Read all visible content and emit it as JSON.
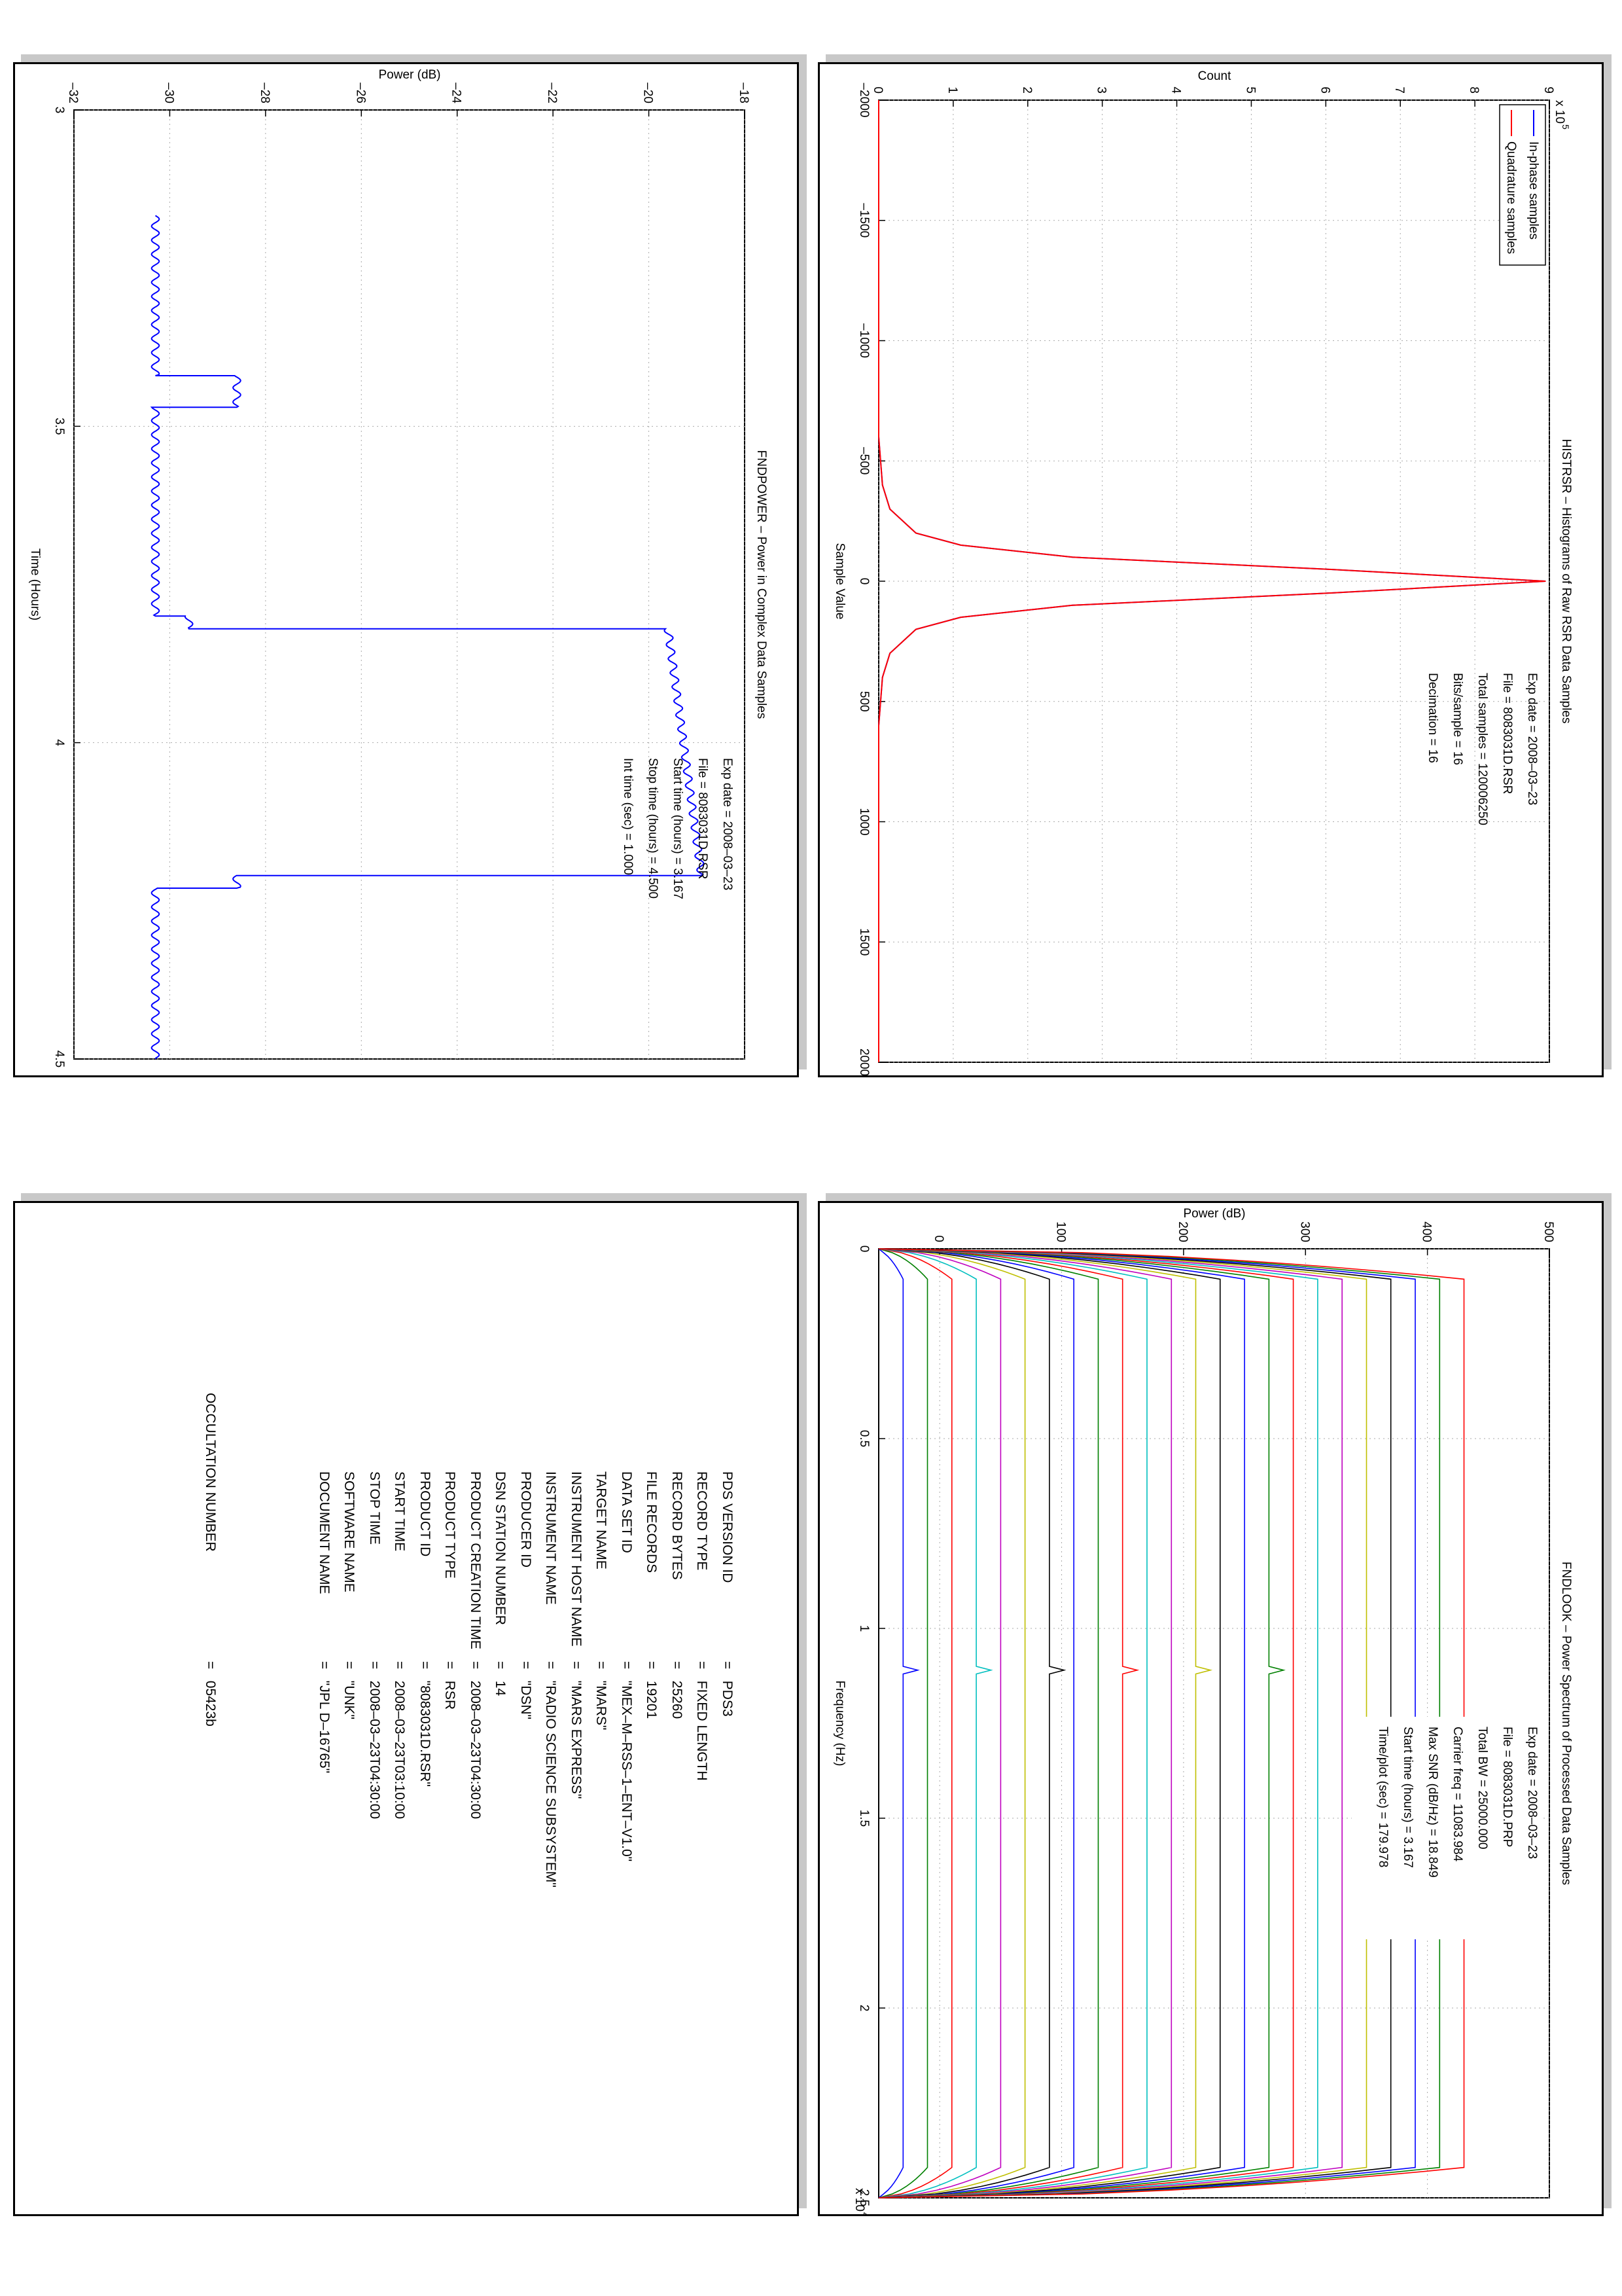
{
  "histrsr": {
    "chart_data": {
      "type": "line",
      "title": "HISTRSR – Histograms of Raw RSR Data Samples",
      "xlabel": "Sample Value",
      "ylabel": "Count",
      "y_multiplier_label": "x 10",
      "y_multiplier_exp": "5",
      "xlim": [
        -2000,
        2000
      ],
      "ylim": [
        0,
        9
      ],
      "xticks": [
        "-2000",
        "-1500",
        "-1000",
        "-500",
        "0",
        "500",
        "1000",
        "1500",
        "2000"
      ],
      "yticks": [
        "0",
        "1",
        "2",
        "3",
        "4",
        "5",
        "6",
        "7",
        "8",
        "9"
      ],
      "grid": true,
      "legend_position": "top-left",
      "series": [
        {
          "name": "In-phase samples",
          "color": "#0000ff",
          "x": [
            -2000,
            -600,
            -400,
            -300,
            -200,
            -150,
            -100,
            -50,
            0,
            50,
            100,
            150,
            200,
            300,
            400,
            600,
            2000
          ],
          "y": [
            0,
            0,
            0.05,
            0.15,
            0.5,
            1.1,
            2.6,
            6.0,
            8.95,
            6.0,
            2.6,
            1.1,
            0.5,
            0.15,
            0.05,
            0,
            0
          ]
        },
        {
          "name": "Quadrature samples",
          "color": "#ff0000",
          "x": [
            -2000,
            -600,
            -400,
            -300,
            -200,
            -150,
            -100,
            -50,
            0,
            50,
            100,
            150,
            200,
            300,
            400,
            600,
            2000
          ],
          "y": [
            0,
            0,
            0.05,
            0.15,
            0.5,
            1.1,
            2.6,
            6.0,
            8.95,
            6.0,
            2.6,
            1.1,
            0.5,
            0.15,
            0.05,
            0,
            0
          ]
        }
      ],
      "info": [
        {
          "label": "Exp date = 2008–03–23"
        },
        {
          "label": "File = 8083031D.RSR"
        },
        {
          "label": "Total samples =  120006250"
        },
        {
          "label": "Bits/sample    =       16"
        },
        {
          "label": "Decimation     =       16"
        }
      ]
    }
  },
  "fndpower": {
    "chart_data": {
      "type": "line",
      "title": "FNDPOWER – Power in Complex Data Samples",
      "xlabel": "Time (Hours)",
      "ylabel": "Power (dB)",
      "xlim": [
        3,
        4.5
      ],
      "ylim": [
        -32,
        -18
      ],
      "xticks": [
        "3",
        "3.5",
        "4",
        "4.5"
      ],
      "yticks": [
        "-32",
        "-30",
        "-28",
        "-26",
        "-24",
        "-22",
        "-20",
        "-18"
      ],
      "grid": true,
      "series": [
        {
          "name": "",
          "color": "#0000ff",
          "x": [
            3.167,
            3.42,
            3.42,
            3.47,
            3.47,
            3.8,
            3.8,
            3.82,
            3.82,
            4.21,
            4.21,
            4.23,
            4.23,
            4.5
          ],
          "y": [
            -30.3,
            -30.3,
            -28.6,
            -28.6,
            -30.3,
            -30.3,
            -29.6,
            -29.6,
            -19.6,
            -18.9,
            -28.6,
            -28.6,
            -30.3,
            -30.3
          ]
        }
      ],
      "info": [
        {
          "label": "Exp date = 2008–03–23"
        },
        {
          "label": "File = 8083031D.RSR"
        },
        {
          "label": "Start time (hours) =  3.167"
        },
        {
          "label": "Stop time (hours)  =  4.500"
        },
        {
          "label": "Int time (sec)  =      1.000"
        }
      ]
    }
  },
  "fndlook": {
    "chart_data": {
      "type": "line",
      "title": "FNDLOOK – Power Spectrum of Processed Data Samples",
      "xlabel": "Frequency (Hz)",
      "ylabel": "Power (dB)",
      "x_multiplier_label": "x 10",
      "x_multiplier_exp": "4",
      "xlim": [
        0,
        2.5
      ],
      "ylim": [
        -50,
        500
      ],
      "xticks": [
        "0",
        "0.5",
        "1",
        "1.5",
        "2",
        "2.5"
      ],
      "yticks": [
        "0",
        "100",
        "200",
        "300",
        "400",
        "500"
      ],
      "grid": true,
      "trace_offsets": [
        -30,
        -10,
        10,
        30,
        50,
        70,
        90,
        110,
        130,
        150,
        170,
        190,
        210,
        230,
        250,
        270,
        290,
        310,
        330,
        350,
        370,
        390,
        410,
        430
      ],
      "trace_colors": [
        "#0000ff",
        "#008000",
        "#ff0000",
        "#00bfbf",
        "#bf00bf",
        "#bfbf00",
        "#000000",
        "#0000ff",
        "#008000",
        "#ff0000",
        "#00bfbf",
        "#bf00bf",
        "#bfbf00",
        "#000000",
        "#0000ff",
        "#008000",
        "#ff0000",
        "#00bfbf",
        "#bf00bf",
        "#bfbf00",
        "#000000",
        "#0000ff",
        "#008000",
        "#ff0000"
      ],
      "info": [
        {
          "label": "Exp date = 2008–03–23"
        },
        {
          "label": "File = 8083031D.PRP"
        },
        {
          "label": "Total BW =      25000.000"
        },
        {
          "label": "Carrier freq =   11083.984"
        },
        {
          "label": "Max SNR (dB/Hz) =     18.849"
        },
        {
          "label": "Start time (hours) =    3.167"
        },
        {
          "label": "Time/plot (sec) =     179.978"
        }
      ]
    }
  },
  "label": {
    "rows": [
      {
        "key": "PDS VERSION ID",
        "value": "=   PDS3"
      },
      {
        "key": "RECORD TYPE",
        "value": "=   FIXED LENGTH"
      },
      {
        "key": "RECORD BYTES",
        "value": "=   25260"
      },
      {
        "key": "FILE RECORDS",
        "value": "=   19201"
      },
      {
        "key": "DATA SET ID",
        "value": "=   \"MEX–M–RSS–1–ENT–V1.0\""
      },
      {
        "key": "TARGET NAME",
        "value": "=   \"MARS\""
      },
      {
        "key": "INSTRUMENT HOST NAME",
        "value": "=   \"MARS EXPRESS\""
      },
      {
        "key": "INSTRUMENT NAME",
        "value": "=   \"RADIO SCIENCE SUBSYSTEM\""
      },
      {
        "key": "PRODUCER ID",
        "value": "=   \"DSN\""
      },
      {
        "key": "DSN STATION NUMBER",
        "value": "=   14"
      },
      {
        "key": "PRODUCT CREATION TIME",
        "value": "=   2008–03–23T04:30:00"
      },
      {
        "key": "PRODUCT TYPE",
        "value": "=   RSR"
      },
      {
        "key": "PRODUCT ID",
        "value": "=   \"8083031D.RSR\""
      },
      {
        "key": "START TIME",
        "value": "=   2008–03–23T03:10:00"
      },
      {
        "key": "STOP TIME",
        "value": "=   2008–03–23T04:30:00"
      },
      {
        "key": "SOFTWARE NAME",
        "value": "=   \"UNK\""
      },
      {
        "key": "DOCUMENT NAME",
        "value": "=   \"JPL D–16765\""
      }
    ],
    "occultation": {
      "key": "OCCULTATION NUMBER",
      "value": "=   05423b"
    }
  }
}
